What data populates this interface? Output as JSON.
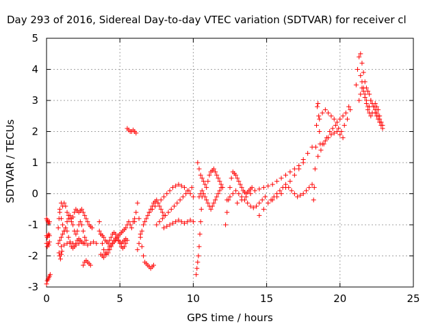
{
  "chart_data": {
    "type": "scatter",
    "title": "Day 293 of 2016, Sidereal Day-to-day VTEC variation (SDTVAR) for receiver cl",
    "xlabel": "GPS time / hours",
    "ylabel": "SDTVAR / TECUs",
    "xlim": [
      0,
      25
    ],
    "ylim": [
      -3,
      5
    ],
    "x_ticks": [
      "0",
      "5",
      "10",
      "15",
      "20",
      "25"
    ],
    "y_ticks": [
      "-3",
      "-2",
      "-1",
      "0",
      "1",
      "2",
      "3",
      "4",
      "5"
    ],
    "grid": true,
    "legend": "none",
    "marker": "plus",
    "color": "#ff0000",
    "series": [
      {
        "x": [
          0.0,
          0.05,
          0.1,
          0.15,
          0.2,
          0.25,
          0.0,
          0.05,
          0.1,
          0.15,
          0.2,
          0.0,
          0.05,
          0.1,
          0.15,
          0.2,
          0.0,
          0.05,
          0.1,
          0.15,
          0.2,
          0.8,
          0.85,
          0.9,
          1.0,
          1.1,
          1.2,
          1.3,
          1.4,
          1.5,
          1.6,
          1.7,
          1.8,
          1.9,
          2.0,
          2.1,
          2.2,
          2.3,
          2.4,
          2.5,
          2.6,
          2.7,
          2.8,
          2.9,
          3.0,
          3.1,
          0.9,
          1.0,
          1.1,
          1.2,
          1.3,
          1.4,
          1.5,
          1.6,
          1.7,
          1.8,
          1.9,
          2.0,
          2.1,
          2.2,
          2.3,
          2.4,
          2.5,
          2.6,
          2.7,
          0.8,
          0.9,
          1.0,
          1.1,
          1.2,
          1.3,
          1.4,
          1.5,
          1.6,
          1.7,
          1.8,
          1.9,
          2.0,
          2.1,
          2.2,
          2.3,
          2.4,
          2.5,
          1.0,
          1.2,
          1.4,
          1.6,
          1.8,
          2.0,
          2.2,
          2.4,
          2.6,
          2.8,
          3.0,
          3.2,
          3.4,
          0.85,
          0.9,
          0.95,
          1.0,
          1.05,
          2.5,
          2.6,
          2.7,
          2.8,
          2.9,
          3.0,
          3.6,
          3.7,
          3.8,
          3.9,
          4.0,
          4.1,
          4.2,
          4.3,
          4.4,
          4.5,
          4.6,
          4.7,
          4.8,
          4.9,
          5.0,
          5.1,
          5.2,
          5.3,
          5.4,
          5.5,
          5.6,
          5.7,
          5.8,
          5.9,
          6.0,
          3.6,
          3.7,
          3.8,
          3.9,
          4.0,
          4.1,
          4.2,
          4.3,
          4.4,
          4.5,
          4.6,
          4.7,
          4.8,
          4.9,
          5.0,
          5.1,
          5.2,
          5.3,
          5.4,
          5.5,
          3.7,
          3.8,
          3.9,
          4.0,
          4.1,
          4.2,
          4.3,
          4.4,
          4.5,
          4.6,
          4.7,
          4.8,
          4.9,
          5.0,
          5.1,
          5.2,
          5.3,
          5.4,
          5.5,
          5.6,
          5.7,
          5.8,
          5.9,
          6.0,
          6.1,
          6.0,
          6.1,
          6.2,
          6.3,
          6.4,
          6.5,
          6.6,
          6.7,
          6.8,
          6.9,
          7.0,
          7.1,
          7.2,
          7.3,
          6.2,
          6.3,
          6.4,
          6.5,
          6.6,
          6.7,
          6.8,
          6.9,
          7.0,
          7.1,
          7.2,
          7.3,
          7.4,
          7.5,
          7.6,
          7.7,
          7.8,
          7.9,
          8.0,
          7.0,
          7.2,
          7.4,
          7.6,
          7.8,
          8.0,
          8.2,
          8.4,
          8.6,
          8.8,
          9.0,
          9.2,
          9.4,
          9.6,
          9.8,
          10.0,
          7.5,
          7.7,
          7.9,
          8.1,
          8.3,
          8.5,
          8.7,
          8.9,
          9.1,
          9.3,
          9.5,
          9.7,
          9.9,
          8.0,
          8.2,
          8.4,
          8.6,
          8.8,
          9.0,
          9.2,
          9.4,
          9.6,
          9.8,
          10.0,
          10.2,
          10.25,
          10.3,
          10.35,
          10.4,
          10.45,
          10.5,
          10.55,
          10.6,
          10.3,
          10.4,
          10.5,
          10.6,
          10.7,
          10.8,
          10.9,
          11.0,
          11.1,
          11.2,
          11.3,
          11.4,
          11.5,
          11.6,
          11.7,
          11.8,
          11.9,
          12.0,
          10.4,
          10.5,
          10.6,
          10.7,
          10.8,
          10.9,
          11.0,
          11.1,
          11.2,
          11.3,
          11.4,
          11.5,
          11.6,
          11.7,
          11.8,
          11.9,
          12.2,
          12.3,
          12.4,
          12.5,
          12.6,
          12.7,
          12.8,
          12.9,
          13.0,
          13.1,
          13.2,
          13.3,
          13.4,
          13.5,
          13.6,
          13.7,
          13.8,
          13.9,
          14.0,
          12.3,
          12.5,
          12.7,
          12.9,
          13.1,
          13.3,
          13.5,
          13.7,
          13.9,
          14.1,
          14.3,
          14.5,
          14.7,
          14.9,
          13.0,
          13.3,
          13.6,
          13.9,
          14.2,
          14.5,
          14.8,
          15.1,
          15.4,
          15.7,
          16.0,
          16.3,
          16.6,
          16.9,
          17.2,
          17.5,
          17.8,
          18.1,
          14.5,
          14.8,
          15.1,
          15.4,
          15.7,
          16.0,
          16.3,
          16.6,
          16.9,
          17.2,
          17.5,
          15.3,
          15.5,
          15.7,
          15.9,
          16.1,
          16.3,
          16.5,
          16.7,
          16.9,
          17.1,
          17.3,
          17.5,
          17.7,
          17.9,
          18.1,
          18.2,
          18.25,
          18.3,
          18.35,
          18.4,
          18.45,
          18.5,
          18.55,
          18.6,
          18.65,
          18.5,
          18.7,
          18.9,
          19.1,
          19.3,
          19.5,
          19.7,
          19.9,
          20.1,
          20.3,
          20.5,
          20.7,
          18.6,
          18.8,
          19.0,
          19.2,
          19.4,
          19.6,
          19.8,
          20.0,
          20.2,
          20.4,
          20.6,
          18.8,
          19.0,
          19.2,
          19.4,
          19.6,
          19.8,
          20.0,
          20.2,
          21.1,
          21.2,
          21.3,
          21.4,
          21.5,
          21.6,
          21.7,
          21.8,
          21.9,
          22.0,
          22.1,
          22.2,
          22.3,
          22.4,
          22.5,
          22.6,
          22.7,
          22.8,
          22.9,
          21.3,
          21.4,
          21.5,
          21.6,
          21.7,
          21.8,
          21.9,
          22.0,
          22.1,
          22.2,
          22.3,
          22.4,
          22.5,
          22.6,
          22.7,
          22.8,
          22.9,
          21.4,
          21.5,
          21.6,
          21.7,
          21.8,
          21.9,
          22.0,
          22.1,
          22.2,
          22.3,
          22.4,
          22.5,
          22.6,
          22.7,
          22.8
        ],
        "y": [
          -2.9,
          -2.8,
          -2.75,
          -2.7,
          -2.65,
          -2.6,
          -0.8,
          -0.85,
          -0.9,
          -0.95,
          -0.9,
          -1.35,
          -1.4,
          -1.35,
          -1.3,
          -1.35,
          -1.6,
          -1.7,
          -1.6,
          -1.65,
          -1.55,
          -1.1,
          -0.8,
          -0.5,
          -0.3,
          -0.4,
          -0.3,
          -0.4,
          -0.6,
          -0.7,
          -0.8,
          -0.9,
          -0.75,
          -0.6,
          -0.5,
          -0.55,
          -0.6,
          -0.55,
          -0.5,
          -0.6,
          -0.7,
          -0.8,
          -0.9,
          -1.0,
          -1.05,
          -1.1,
          -0.6,
          -0.8,
          -1.0,
          -1.2,
          -1.1,
          -0.9,
          -0.8,
          -0.7,
          -0.8,
          -1.0,
          -1.2,
          -1.3,
          -1.2,
          -1.0,
          -0.9,
          -1.0,
          -1.2,
          -1.4,
          -1.5,
          -1.6,
          -1.5,
          -1.4,
          -1.3,
          -1.2,
          -1.1,
          -1.2,
          -1.4,
          -1.6,
          -1.7,
          -1.75,
          -1.7,
          -1.6,
          -1.5,
          -1.45,
          -1.5,
          -1.55,
          -1.6,
          -1.7,
          -1.65,
          -1.6,
          -1.55,
          -1.6,
          -1.65,
          -1.6,
          -1.55,
          -1.6,
          -1.65,
          -1.6,
          -1.55,
          -1.6,
          -1.9,
          -2.0,
          -2.1,
          -1.95,
          -1.85,
          -2.3,
          -2.2,
          -2.15,
          -2.2,
          -2.25,
          -2.3,
          -0.9,
          -1.3,
          -1.6,
          -1.8,
          -1.9,
          -1.95,
          -1.9,
          -1.8,
          -1.7,
          -1.6,
          -1.5,
          -1.45,
          -1.4,
          -1.35,
          -1.3,
          -1.25,
          -1.2,
          -1.15,
          -1.1,
          -1.0,
          -0.9,
          -1.0,
          -1.1,
          -0.9,
          -0.8,
          -1.2,
          -1.3,
          -1.35,
          -1.4,
          -1.5,
          -1.55,
          -1.6,
          -1.5,
          -1.4,
          -1.3,
          -1.25,
          -1.3,
          -1.4,
          -1.5,
          -1.6,
          -1.7,
          -1.75,
          -1.7,
          -1.6,
          -1.5,
          -1.95,
          -2.0,
          -2.05,
          -1.95,
          -1.9,
          -1.8,
          -1.7,
          -1.65,
          -1.6,
          -1.55,
          -1.5,
          -1.45,
          -1.5,
          -1.55,
          -1.6,
          -1.55,
          -1.5,
          -1.45,
          2.1,
          2.05,
          2.0,
          2.0,
          2.05,
          2.0,
          1.95,
          -0.9,
          -0.6,
          -0.3,
          -0.8,
          -1.3,
          -1.7,
          -2.0,
          -2.2,
          -2.25,
          -2.3,
          -2.35,
          -2.4,
          -2.35,
          -2.3,
          -1.8,
          -1.6,
          -1.4,
          -1.2,
          -1.0,
          -0.9,
          -0.8,
          -0.7,
          -0.6,
          -0.5,
          -0.4,
          -0.3,
          -0.25,
          -0.2,
          -0.3,
          -0.4,
          -0.5,
          -0.6,
          -0.7,
          -0.6,
          -0.5,
          -0.4,
          -0.3,
          -0.2,
          -0.1,
          0.0,
          0.1,
          0.2,
          0.25,
          0.3,
          0.25,
          0.2,
          0.1,
          0.0,
          -0.1,
          -1.0,
          -0.9,
          -0.8,
          -0.7,
          -0.6,
          -0.5,
          -0.4,
          -0.3,
          -0.2,
          -0.1,
          0.0,
          0.1,
          0.2,
          -1.1,
          -1.05,
          -1.0,
          -0.95,
          -0.9,
          -0.85,
          -0.9,
          -0.95,
          -0.9,
          -0.85,
          -0.9,
          -2.6,
          -2.4,
          -2.2,
          -2.0,
          -1.7,
          -1.3,
          -0.9,
          -0.5,
          -0.1,
          1.0,
          0.8,
          0.6,
          0.5,
          0.4,
          0.3,
          0.2,
          0.4,
          0.6,
          0.7,
          0.75,
          0.8,
          0.7,
          0.6,
          0.5,
          0.4,
          0.3,
          0.2,
          -0.1,
          0.0,
          0.1,
          0.0,
          -0.1,
          -0.2,
          -0.3,
          -0.4,
          -0.5,
          -0.4,
          -0.3,
          -0.2,
          -0.1,
          0.0,
          0.1,
          0.2,
          -1.0,
          -0.6,
          -0.2,
          0.2,
          0.5,
          0.7,
          0.65,
          0.6,
          0.5,
          0.4,
          0.3,
          0.2,
          0.1,
          0.05,
          0.0,
          0.05,
          0.1,
          0.15,
          0.2,
          -0.2,
          -0.1,
          0.0,
          0.1,
          0.0,
          -0.1,
          -0.2,
          -0.3,
          -0.4,
          -0.45,
          -0.4,
          -0.3,
          -0.2,
          -0.1,
          -0.3,
          -0.2,
          -0.1,
          0.0,
          0.1,
          0.15,
          0.2,
          0.25,
          0.3,
          0.4,
          0.5,
          0.6,
          0.7,
          0.8,
          0.9,
          1.1,
          1.3,
          1.5,
          -0.7,
          -0.5,
          -0.3,
          -0.2,
          -0.1,
          0.0,
          0.2,
          0.4,
          0.6,
          0.8,
          1.0,
          -0.2,
          -0.1,
          0.0,
          0.1,
          0.2,
          0.3,
          0.2,
          0.1,
          0.0,
          -0.1,
          -0.05,
          0.0,
          0.1,
          0.2,
          0.3,
          -0.2,
          0.2,
          0.8,
          1.5,
          2.2,
          2.8,
          2.9,
          2.5,
          2.0,
          1.6,
          1.2,
          1.4,
          1.6,
          1.8,
          2.0,
          2.1,
          2.2,
          2.1,
          2.0,
          2.2,
          2.4,
          2.7,
          2.4,
          2.6,
          2.7,
          2.6,
          2.5,
          2.4,
          2.3,
          2.4,
          2.5,
          2.6,
          2.8,
          1.6,
          1.7,
          1.8,
          1.9,
          1.95,
          2.0,
          1.9,
          1.8,
          3.5,
          4.0,
          4.4,
          4.5,
          4.2,
          3.9,
          3.6,
          3.4,
          3.3,
          3.2,
          3.0,
          2.9,
          2.8,
          2.7,
          2.6,
          2.5,
          2.4,
          2.3,
          2.2,
          3.0,
          3.2,
          3.4,
          3.3,
          3.1,
          2.9,
          2.7,
          2.8,
          3.0,
          2.9,
          2.8,
          2.6,
          2.5,
          2.4,
          2.3,
          2.2,
          2.1,
          3.8,
          3.6,
          3.4,
          3.2,
          3.0,
          2.8,
          2.6,
          2.5,
          2.6,
          2.8,
          2.9,
          2.8,
          2.7,
          2.5,
          2.3
        ]
      }
    ]
  }
}
